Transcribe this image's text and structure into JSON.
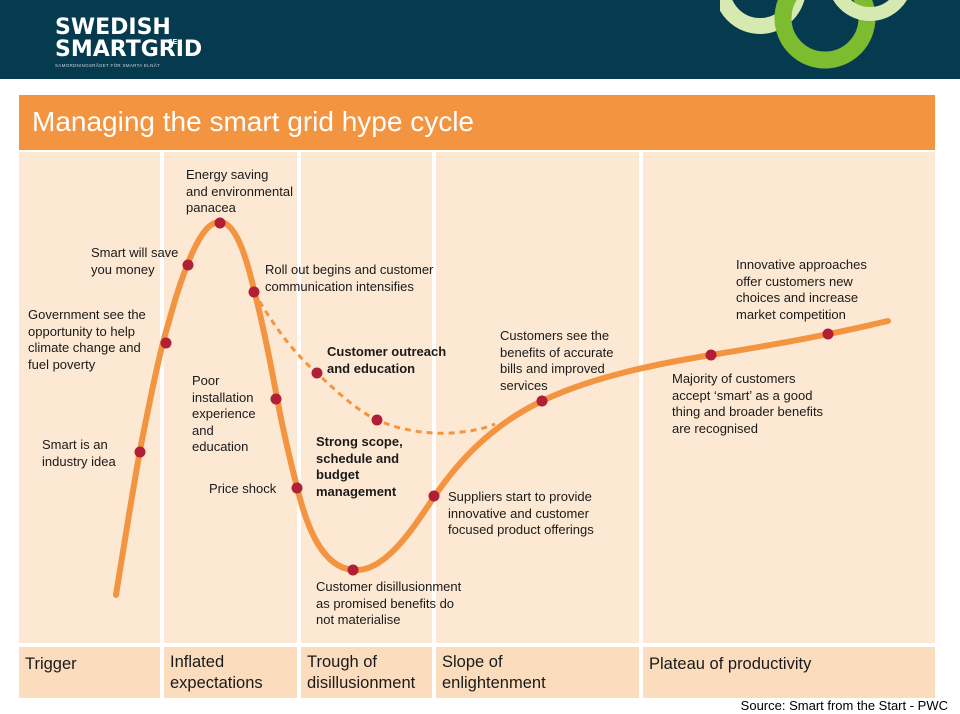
{
  "header": {
    "logo_line1": "SWEDISH",
    "logo_line2": "SMARTGRID",
    "logo_superscript": "SE",
    "logo_tagline": "SAMORDNINGSRÅDET FÖR SMARTA ELNÄT",
    "background": "#053a4f",
    "ring_colors": [
      "#d6e9b0",
      "#7dbb2f"
    ]
  },
  "title": "Managing the smart grid hype cycle",
  "colors": {
    "accent": "#f39440",
    "panel": "#fde8d3",
    "phase_panel": "#fbdcbd",
    "dot": "#b01f36"
  },
  "phases": [
    {
      "id": "trigger",
      "label": "Trigger"
    },
    {
      "id": "inflated",
      "label": "Inflated\nexpectations"
    },
    {
      "id": "trough",
      "label": "Trough of\ndisillusionment"
    },
    {
      "id": "slope",
      "label": "Slope of\nenlightenment"
    },
    {
      "id": "plateau",
      "label": "Plateau of productivity"
    }
  ],
  "annotations": [
    {
      "id": "industry-idea",
      "text": "Smart is an\nindustry idea",
      "bold": false
    },
    {
      "id": "government",
      "text": "Government see the\nopportunity to help\nclimate change and\nfuel poverty",
      "bold": false
    },
    {
      "id": "save-money",
      "text": "Smart will save\nyou money",
      "bold": false
    },
    {
      "id": "energy-saving",
      "text": "Energy saving\nand environmental\npanacea",
      "bold": false
    },
    {
      "id": "roll-out",
      "text": "Roll out begins and customer\ncommunication intensifies",
      "bold": false
    },
    {
      "id": "poor-installation",
      "text": "Poor\ninstallation\nexperience\nand\neducation",
      "bold": false
    },
    {
      "id": "price-shock",
      "text": "Price shock",
      "bold": false
    },
    {
      "id": "customer-outreach",
      "text": "Customer outreach\nand education",
      "bold": true
    },
    {
      "id": "strong-scope",
      "text": "Strong scope,\nschedule and\nbudget\nmanagement",
      "bold": true
    },
    {
      "id": "disillusionment",
      "text": "Customer disillusionment\nas promised benefits do\nnot materialise",
      "bold": false
    },
    {
      "id": "suppliers",
      "text": "Suppliers start to provide\ninnovative and customer\nfocused product offerings",
      "bold": false
    },
    {
      "id": "customers-see",
      "text": "Customers see the\nbenefits of accurate\nbills and improved\nservices",
      "bold": false
    },
    {
      "id": "majority",
      "text": "Majority of customers\naccept ‘smart’ as a good\nthing and broader benefits\nare recognised",
      "bold": false
    },
    {
      "id": "innovative",
      "text": "Innovative approaches\noffer customers new\nchoices and increase\nmarket competition",
      "bold": false
    }
  ],
  "source": "Source: Smart from the Start - PWC"
}
